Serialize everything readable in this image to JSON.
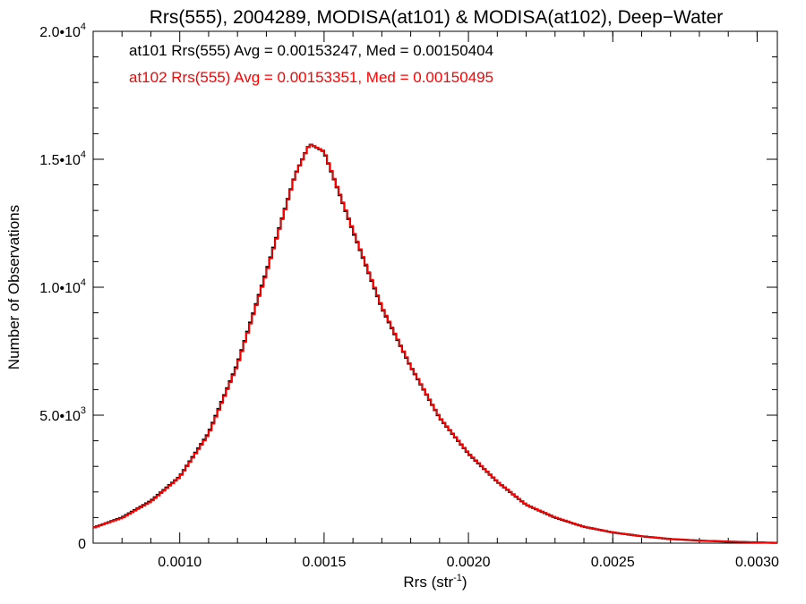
{
  "chart_data": {
    "type": "line",
    "step": true,
    "title": "Rrs(555), 2004289, MODISA(at101) & MODISA(at102), Deep−Water",
    "xlabel": "Rrs (str",
    "xlabel_sup": "-1",
    "xlabel_close": ")",
    "ylabel": "Number of Observations",
    "xlim": [
      0.0007,
      0.00307
    ],
    "ylim": [
      0,
      20000
    ],
    "grid": false,
    "x_ticks": [
      {
        "value": 0.001,
        "label": "0.0010"
      },
      {
        "value": 0.0015,
        "label": "0.0015"
      },
      {
        "value": 0.002,
        "label": "0.0020"
      },
      {
        "value": 0.0025,
        "label": "0.0025"
      },
      {
        "value": 0.003,
        "label": "0.0030"
      }
    ],
    "y_ticks": [
      {
        "value": 0,
        "label": "0",
        "exp": ""
      },
      {
        "value": 5000,
        "label": "5.0•10",
        "exp": "3"
      },
      {
        "value": 10000,
        "label": "1.0•10",
        "exp": "4"
      },
      {
        "value": 15000,
        "label": "1.5•10",
        "exp": "4"
      },
      {
        "value": 20000,
        "label": "2.0•10",
        "exp": "4"
      }
    ],
    "annotations": [
      {
        "text": "at101 Rrs(555) Avg = 0.00153247, Med = 0.00150404",
        "color": "#000000"
      },
      {
        "text": "at102 Rrs(555) Avg = 0.00153351, Med = 0.00150495",
        "color": "#ff0000"
      }
    ],
    "series": [
      {
        "name": "at101",
        "color": "#000000",
        "x": [
          0.0007,
          0.0008,
          0.0009,
          0.001,
          0.0011,
          0.0012,
          0.0013,
          0.0014,
          0.00145,
          0.0015,
          0.0016,
          0.0017,
          0.0018,
          0.0019,
          0.002,
          0.0021,
          0.0022,
          0.0023,
          0.0024,
          0.0025,
          0.0026,
          0.0027,
          0.0028,
          0.0029,
          0.003,
          0.00307
        ],
        "y": [
          600,
          1000,
          1650,
          2600,
          4300,
          7000,
          10600,
          14400,
          15600,
          15300,
          12200,
          9200,
          6900,
          4900,
          3500,
          2400,
          1500,
          1000,
          640,
          420,
          270,
          160,
          100,
          60,
          30,
          10
        ]
      },
      {
        "name": "at102",
        "color": "#ff0000",
        "x": [
          0.0007,
          0.0008,
          0.0009,
          0.001,
          0.0011,
          0.0012,
          0.0013,
          0.0014,
          0.00145,
          0.0015,
          0.0016,
          0.0017,
          0.0018,
          0.0019,
          0.002,
          0.0021,
          0.0022,
          0.0023,
          0.0024,
          0.0025,
          0.0026,
          0.0027,
          0.0028,
          0.0029,
          0.003,
          0.00307
        ],
        "y": [
          600,
          980,
          1620,
          2580,
          4260,
          6960,
          10550,
          14380,
          15600,
          15320,
          12240,
          9240,
          6920,
          4920,
          3520,
          2410,
          1510,
          1010,
          645,
          425,
          272,
          162,
          101,
          61,
          31,
          10
        ]
      }
    ]
  }
}
